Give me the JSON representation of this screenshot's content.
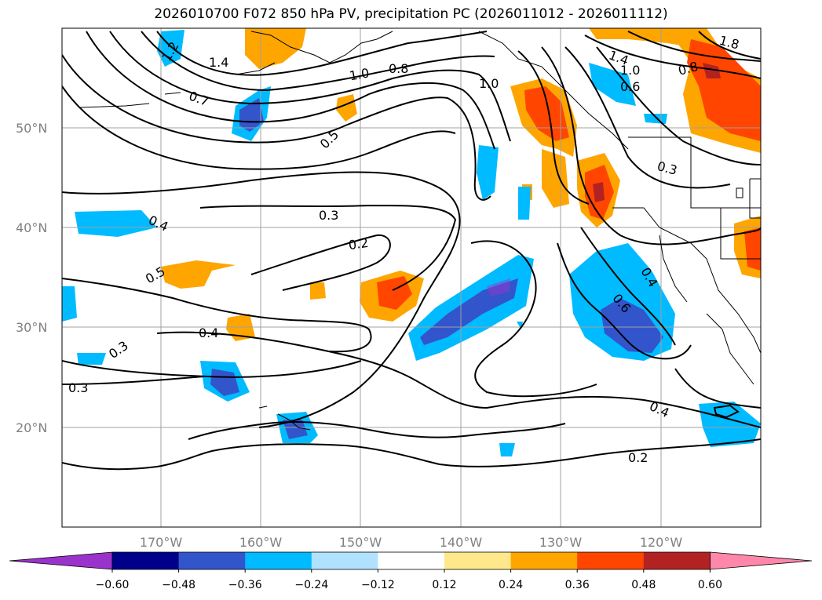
{
  "title": "2026010700 F072 850 hPa PV, precipitation PC (2026011012 - 2026011112)",
  "map": {
    "lat_ticks": [
      "50°N",
      "40°N",
      "30°N",
      "20°N"
    ],
    "lon_ticks": [
      "170°W",
      "160°W",
      "150°W",
      "140°W",
      "130°W",
      "120°W"
    ],
    "contour_labels": [
      "1.4",
      "1.2",
      "0.7",
      "1.0",
      "0.8",
      "0.5",
      "1.0",
      "1.4",
      "1.0",
      "0.6",
      "0.8",
      "1.8",
      "0.3",
      "0.3",
      "0.2",
      "0.4",
      "0.5",
      "0.4",
      "0.3",
      "0.3",
      "0.4",
      "0.6",
      "0.4",
      "0.2"
    ],
    "grid": true
  },
  "colorbar": {
    "ticks": [
      "−0.60",
      "−0.48",
      "−0.36",
      "−0.24",
      "−0.12",
      "0.12",
      "0.24",
      "0.36",
      "0.48",
      "0.60"
    ],
    "colors": [
      "#9933cc",
      "#00008b",
      "#3355cc",
      "#00bbff",
      "#b0e2ff",
      "#ffffff",
      "#ffe88c",
      "#ffa500",
      "#ff4500",
      "#b22222",
      "#ff88aa"
    ]
  }
}
